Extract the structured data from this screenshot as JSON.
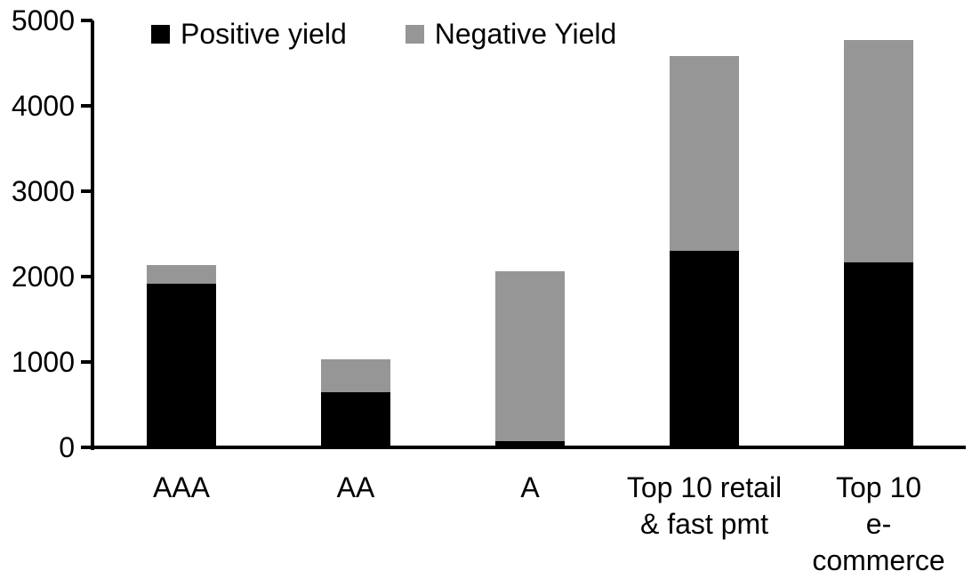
{
  "chart_data": {
    "type": "bar",
    "stacked": true,
    "title": "",
    "xlabel": "",
    "ylabel": "",
    "categories": [
      "AAA",
      "AA",
      "A",
      "Top 10 retail\n& fast pmt",
      "Top 10\ne-commerce"
    ],
    "series": [
      {
        "name": "Positive yield",
        "color": "#000000",
        "values": [
          1900,
          630,
          50,
          2280,
          2145
        ]
      },
      {
        "name": "Negative Yield",
        "color": "#969696",
        "values": [
          220,
          380,
          1990,
          2280,
          2610
        ]
      }
    ],
    "totals": [
      2120,
      1010,
      2040,
      4560,
      4755
    ],
    "ylim": [
      0,
      5000
    ],
    "yticks": [
      0,
      1000,
      2000,
      3000,
      4000,
      5000
    ],
    "legend_position": "top",
    "grid": false,
    "axis_color": "#000000",
    "background_color": "#ffffff"
  }
}
